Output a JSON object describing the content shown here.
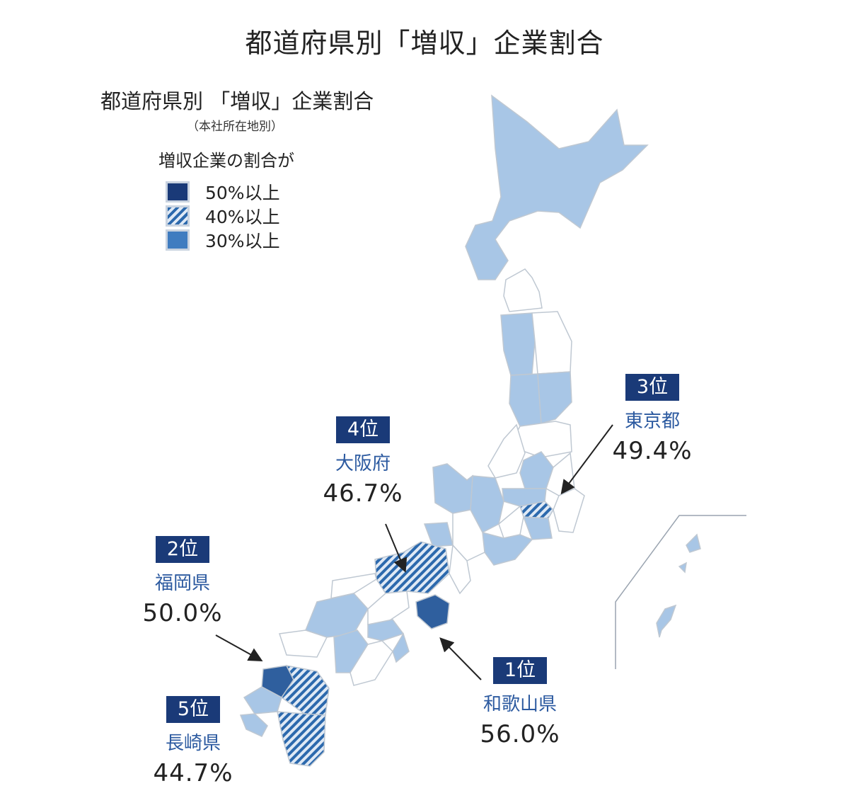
{
  "title": "都道府県別「増収」企業割合",
  "legend": {
    "title": "都道府県別 「増収」企業割合",
    "subtitle": "（本社所在地別）",
    "caption": "増収企業の割合が",
    "items": [
      {
        "label": "50%以上",
        "color": "#1a3a78",
        "pattern": "solid"
      },
      {
        "label": "40%以上",
        "color": "#2c69ad",
        "pattern": "hatched"
      },
      {
        "label": "30%以上",
        "color": "#3f7cc0",
        "pattern": "solid"
      }
    ]
  },
  "colors": {
    "under30": "#a8c6e6",
    "pct40": "#2c69ad",
    "pct50": "#2f5f9e",
    "border": "#ffffff",
    "map_outline": "#bfc8d2",
    "badge": "#1a3a78",
    "pref_text": "#2c5aa0"
  },
  "rankings": [
    {
      "rank": "1位",
      "prefecture": "和歌山県",
      "percent": "56.0%"
    },
    {
      "rank": "2位",
      "prefecture": "福岡県",
      "percent": "50.0%"
    },
    {
      "rank": "3位",
      "prefecture": "東京都",
      "percent": "49.4%"
    },
    {
      "rank": "4位",
      "prefecture": "大阪府",
      "percent": "46.7%"
    },
    {
      "rank": "5位",
      "prefecture": "長崎県",
      "percent": "44.7%"
    }
  ]
}
